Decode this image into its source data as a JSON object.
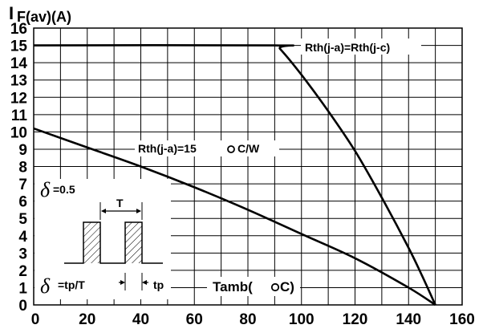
{
  "chart_data": {
    "type": "line",
    "ylabel_main": "I",
    "ylabel_sub": "F(av)(A)",
    "xlabel": "Tamb(°C)",
    "xlabel_display": "Tamb(",
    "xlabel_unit": "C)",
    "xlim": [
      0,
      160
    ],
    "ylim": [
      0,
      16
    ],
    "grid": true,
    "x_ticks": [
      "0",
      "20",
      "40",
      "60",
      "80",
      "100",
      "120",
      "140",
      "160"
    ],
    "y_ticks": [
      "0",
      "1",
      "2",
      "3",
      "4",
      "5",
      "6",
      "7",
      "8",
      "9",
      "10",
      "11",
      "12",
      "13",
      "14",
      "15",
      "16"
    ],
    "series": [
      {
        "name": "Rth(j-a)=Rth(j-c)",
        "x": [
          0,
          90,
          92,
          100,
          110,
          120,
          130,
          140,
          145,
          150
        ],
        "y": [
          15,
          15,
          14.8,
          13.3,
          11.2,
          8.9,
          6.2,
          3.3,
          1.7,
          0
        ]
      },
      {
        "name": "Rth(j-a)=15 °C/W",
        "name_display": "Rth(j-a)=15",
        "name_unit": "C/W",
        "x": [
          0,
          20,
          40,
          60,
          80,
          100,
          120,
          140,
          150
        ],
        "y": [
          10.2,
          9.1,
          8.0,
          6.8,
          5.5,
          4.1,
          2.7,
          1.0,
          0
        ]
      }
    ],
    "inset": {
      "delta_symbol": "δ",
      "delta_value": "=0.5",
      "period_label": "T",
      "formula": "=tp/T",
      "pulse_label": "tp"
    }
  }
}
